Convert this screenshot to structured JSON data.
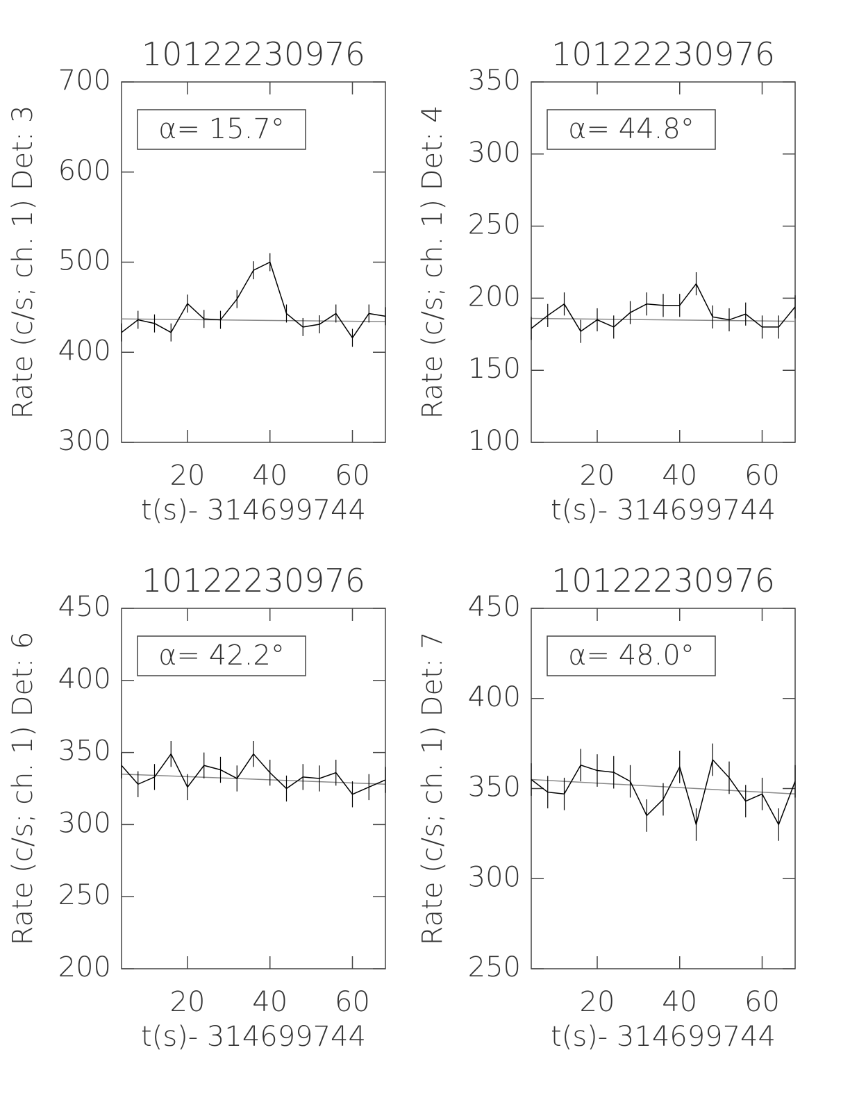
{
  "chart_data": [
    {
      "type": "line",
      "title": "10122230976",
      "ylabel": "Rate (c/s; ch. 1) Det: 3",
      "xlabel": "t(s)- 314699744",
      "annotation": "α= 15.7°",
      "x": [
        4,
        8,
        12,
        16,
        20,
        24,
        28,
        32,
        36,
        40,
        44,
        48,
        52,
        56,
        60,
        64,
        68
      ],
      "values": [
        422,
        436,
        432,
        422,
        454,
        437,
        436,
        459,
        491,
        500,
        443,
        428,
        431,
        443,
        416,
        443,
        440
      ],
      "errors": [
        10,
        10,
        10,
        10,
        10,
        10,
        10,
        10,
        10,
        10,
        10,
        10,
        10,
        10,
        10,
        10,
        10
      ],
      "fit": {
        "x": [
          4,
          68
        ],
        "values": [
          437,
          434
        ],
        "color": "#888888"
      },
      "color": "#000000",
      "xlim": [
        4,
        68
      ],
      "ylim": [
        300,
        700
      ],
      "xticks": [
        20,
        40,
        60
      ],
      "yticks": [
        300,
        400,
        500,
        600,
        700
      ]
    },
    {
      "type": "line",
      "title": "10122230976",
      "ylabel": "Rate (c/s; ch. 1) Det: 4",
      "xlabel": "t(s)- 314699744",
      "annotation": "α= 44.8°",
      "x": [
        4,
        8,
        12,
        16,
        20,
        24,
        28,
        32,
        36,
        40,
        44,
        48,
        52,
        56,
        60,
        64,
        68
      ],
      "values": [
        179,
        188,
        196,
        177,
        185,
        180,
        190,
        196,
        195,
        195,
        210,
        187,
        185,
        189,
        180,
        180,
        194
      ],
      "errors": [
        8,
        8,
        8,
        8,
        8,
        8,
        8,
        8,
        8,
        8,
        8,
        8,
        8,
        8,
        8,
        8,
        8
      ],
      "fit": {
        "x": [
          4,
          68
        ],
        "values": [
          186,
          184
        ],
        "color": "#888888"
      },
      "color": "#000000",
      "xlim": [
        4,
        68
      ],
      "ylim": [
        100,
        350
      ],
      "xticks": [
        20,
        40,
        60
      ],
      "yticks": [
        100,
        150,
        200,
        250,
        300,
        350
      ]
    },
    {
      "type": "line",
      "title": "10122230976",
      "ylabel": "Rate (c/s; ch. 1) Det: 6",
      "xlabel": "t(s)- 314699744",
      "annotation": "α= 42.2°",
      "x": [
        4,
        8,
        12,
        16,
        20,
        24,
        28,
        32,
        36,
        40,
        44,
        48,
        52,
        56,
        60,
        64,
        68
      ],
      "values": [
        341,
        328,
        333,
        349,
        326,
        341,
        338,
        332,
        349,
        336,
        325,
        333,
        332,
        336,
        321,
        326,
        331
      ],
      "errors": [
        9,
        9,
        9,
        9,
        9,
        9,
        9,
        9,
        9,
        9,
        9,
        9,
        9,
        9,
        9,
        9,
        9
      ],
      "fit": {
        "x": [
          4,
          68
        ],
        "values": [
          335,
          328
        ],
        "color": "#888888"
      },
      "color": "#000000",
      "xlim": [
        4,
        68
      ],
      "ylim": [
        200,
        450
      ],
      "xticks": [
        20,
        40,
        60
      ],
      "yticks": [
        200,
        250,
        300,
        350,
        400,
        450
      ]
    },
    {
      "type": "line",
      "title": "10122230976",
      "ylabel": "Rate (c/s; ch. 1) Det: 7",
      "xlabel": "t(s)- 314699744",
      "annotation": "α= 48.0°",
      "x": [
        4,
        8,
        12,
        16,
        20,
        24,
        28,
        32,
        36,
        40,
        44,
        48,
        52,
        56,
        60,
        64,
        68
      ],
      "values": [
        355,
        348,
        347,
        363,
        360,
        359,
        354,
        335,
        344,
        362,
        330,
        366,
        356,
        343,
        347,
        330,
        354
      ],
      "errors": [
        9,
        9,
        9,
        9,
        9,
        9,
        9,
        9,
        9,
        9,
        9,
        9,
        9,
        9,
        9,
        9,
        9
      ],
      "fit": {
        "x": [
          4,
          68
        ],
        "values": [
          355,
          347
        ],
        "color": "#888888"
      },
      "color": "#000000",
      "xlim": [
        4,
        68
      ],
      "ylim": [
        250,
        450
      ],
      "xticks": [
        20,
        40,
        60
      ],
      "yticks": [
        250,
        300,
        350,
        400,
        450
      ]
    }
  ]
}
